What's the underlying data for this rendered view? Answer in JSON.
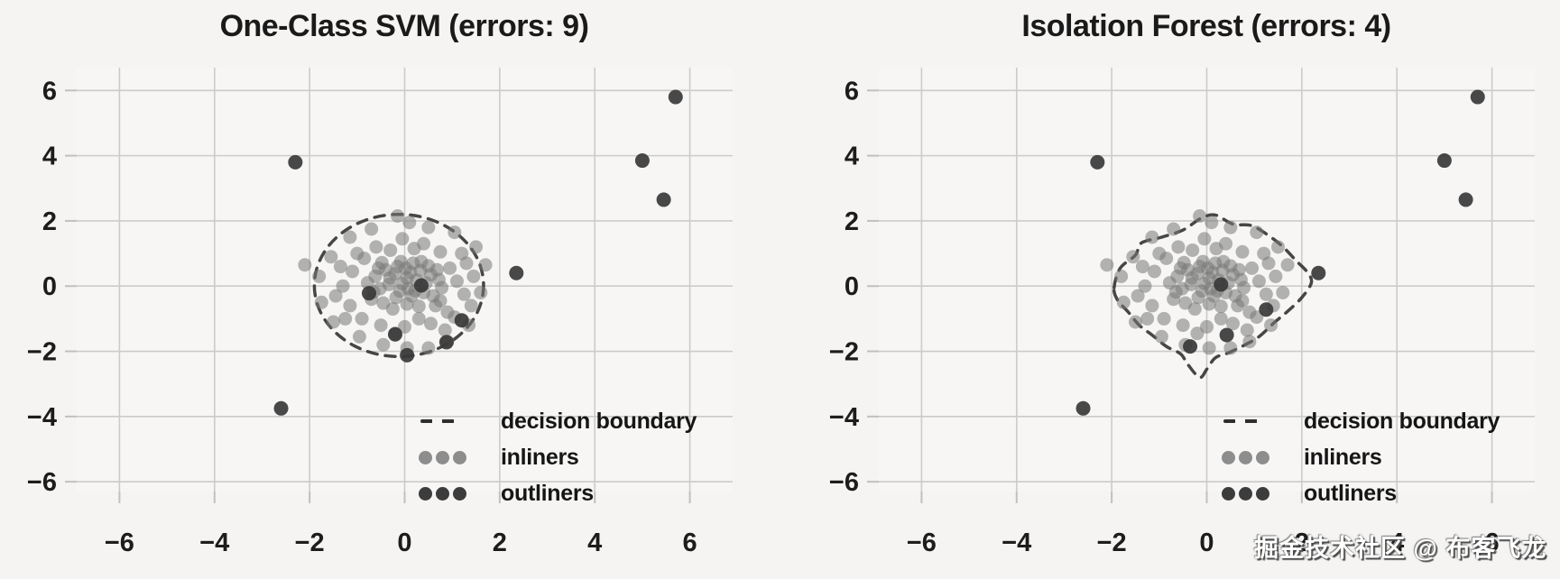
{
  "watermark_text": "掘金技术社区 @ 布客飞龙",
  "colors": {
    "background": "#f5f4f2",
    "plot_background": "#f7f6f4",
    "grid": "#cbcbc9",
    "tick_mark": "#c0c0be",
    "tick_text": "#1c1c1c",
    "title_text": "#1a1a1a",
    "inlier": "#787878",
    "outlier": "#383838",
    "boundary": "#2e2e2e",
    "watermark": "#ffffff"
  },
  "shared_inliers": [
    [
      -0.05,
      0.08
    ],
    [
      0.22,
      -0.14
    ],
    [
      -0.31,
      0.25
    ],
    [
      0.12,
      0.42
    ],
    [
      -0.18,
      -0.35
    ],
    [
      0.45,
      0.1
    ],
    [
      -0.52,
      -0.08
    ],
    [
      0.05,
      -0.55
    ],
    [
      0.33,
      0.48
    ],
    [
      -0.4,
      0.5
    ],
    [
      0.6,
      -0.3
    ],
    [
      -0.62,
      0.3
    ],
    [
      0.18,
      0.7
    ],
    [
      -0.15,
      0.6
    ],
    [
      0.5,
      0.62
    ],
    [
      0.72,
      0.2
    ],
    [
      -0.7,
      -0.4
    ],
    [
      -0.25,
      -0.7
    ],
    [
      0.3,
      -0.62
    ],
    [
      0.05,
      0.25
    ],
    [
      -0.45,
      -0.52
    ],
    [
      0.65,
      -0.6
    ],
    [
      0.78,
      -0.05
    ],
    [
      -0.78,
      0.1
    ],
    [
      0.4,
      -0.2
    ],
    [
      -0.1,
      -0.15
    ],
    [
      0.15,
      -0.3
    ],
    [
      -0.33,
      0.05
    ],
    [
      0.55,
      0.35
    ],
    [
      -0.55,
      0.55
    ],
    [
      0.02,
      0.55
    ],
    [
      0.68,
      0.5
    ],
    [
      -0.2,
      0.38
    ],
    [
      0.25,
      0.18
    ],
    [
      -0.65,
      -0.18
    ],
    [
      0.08,
      -0.08
    ],
    [
      -0.08,
      0.75
    ],
    [
      0.35,
      0.75
    ],
    [
      0.75,
      -0.45
    ],
    [
      -0.48,
      0.72
    ],
    [
      0.95,
      0.55
    ],
    [
      1.1,
      0.15
    ],
    [
      1.25,
      -0.25
    ],
    [
      0.9,
      -0.8
    ],
    [
      1.3,
      0.7
    ],
    [
      0.2,
      1.15
    ],
    [
      -0.3,
      1.1
    ],
    [
      -0.85,
      0.85
    ],
    [
      -1.1,
      0.45
    ],
    [
      -1.3,
      0.0
    ],
    [
      -1.15,
      -0.6
    ],
    [
      -0.9,
      -1.0
    ],
    [
      -0.5,
      -1.2
    ],
    [
      0.0,
      -1.25
    ],
    [
      0.55,
      -1.15
    ],
    [
      1.05,
      -0.95
    ],
    [
      0.75,
      1.05
    ],
    [
      -0.6,
      1.2
    ],
    [
      1.45,
      0.3
    ],
    [
      -1.45,
      -0.3
    ],
    [
      0.4,
      1.3
    ],
    [
      -0.05,
      1.45
    ],
    [
      -1.0,
      1.0
    ],
    [
      1.2,
      1.0
    ],
    [
      -1.35,
      0.6
    ],
    [
      0.85,
      -1.35
    ],
    [
      -0.2,
      -1.45
    ],
    [
      -1.25,
      -1.0
    ],
    [
      1.4,
      -0.6
    ],
    [
      0.3,
      -1.0
    ],
    [
      0.1,
      1.95
    ],
    [
      -0.15,
      2.15
    ],
    [
      0.5,
      1.8
    ],
    [
      1.05,
      1.65
    ],
    [
      1.5,
      1.2
    ],
    [
      1.6,
      -0.2
    ],
    [
      1.35,
      -1.2
    ],
    [
      0.9,
      -1.7
    ],
    [
      0.5,
      -1.9
    ],
    [
      0.05,
      -1.9
    ],
    [
      -0.45,
      -1.8
    ],
    [
      -0.95,
      -1.55
    ],
    [
      -1.5,
      -1.1
    ],
    [
      -1.75,
      -0.5
    ],
    [
      -1.8,
      0.3
    ],
    [
      -1.55,
      0.9
    ],
    [
      -1.15,
      1.5
    ],
    [
      -0.7,
      1.75
    ],
    [
      1.7,
      0.65
    ],
    [
      -2.1,
      0.65
    ]
  ],
  "chart_data": [
    {
      "type": "scatter",
      "title": "One-Class SVM (errors: 9)",
      "errors": 9,
      "xlabel": "",
      "ylabel": "",
      "xlim": [
        -6.9,
        6.9
      ],
      "ylim": [
        -6.3,
        6.7
      ],
      "xticks": [
        -6,
        -4,
        -2,
        0,
        2,
        4,
        6
      ],
      "yticks": [
        6,
        4,
        2,
        0,
        -2,
        -4,
        -6
      ],
      "grid": true,
      "legend": {
        "position": "lower right",
        "items": [
          {
            "label": "decision boundary",
            "marker": "dashed-line"
          },
          {
            "label": "inliners",
            "marker": "gray-dots"
          },
          {
            "label": "outliners",
            "marker": "dark-dots"
          }
        ]
      },
      "inliers_ref": "shared_inliers",
      "outliers": [
        [
          -2.3,
          3.8
        ],
        [
          5.0,
          3.85
        ],
        [
          5.45,
          2.65
        ],
        [
          5.7,
          5.8
        ],
        [
          2.35,
          0.4
        ],
        [
          -2.6,
          -3.75
        ],
        [
          0.05,
          -2.12
        ],
        [
          0.88,
          -1.72
        ],
        [
          0.35,
          0.02
        ],
        [
          -0.75,
          -0.22
        ],
        [
          1.2,
          -1.05
        ],
        [
          -0.2,
          -1.48
        ]
      ],
      "boundary": {
        "shape": "ellipse",
        "cx": -0.12,
        "cy": 0.02,
        "rx": 1.78,
        "ry": 2.18
      }
    },
    {
      "type": "scatter",
      "title": "Isolation Forest (errors: 4)",
      "errors": 4,
      "xlabel": "",
      "ylabel": "",
      "xlim": [
        -6.9,
        6.9
      ],
      "ylim": [
        -6.3,
        6.7
      ],
      "xticks": [
        -6,
        -4,
        -2,
        0,
        2,
        4,
        6
      ],
      "yticks": [
        6,
        4,
        2,
        0,
        -2,
        -4,
        -6
      ],
      "grid": true,
      "legend": {
        "position": "lower right",
        "items": [
          {
            "label": "decision boundary",
            "marker": "dashed-line"
          },
          {
            "label": "inliners",
            "marker": "gray-dots"
          },
          {
            "label": "outliners",
            "marker": "dark-dots"
          }
        ]
      },
      "inliers_ref": "shared_inliers",
      "outliers": [
        [
          -2.3,
          3.8
        ],
        [
          5.0,
          3.85
        ],
        [
          5.45,
          2.65
        ],
        [
          5.7,
          5.8
        ],
        [
          2.35,
          0.4
        ],
        [
          -2.6,
          -3.75
        ],
        [
          -0.35,
          -1.85
        ],
        [
          0.42,
          -1.5
        ],
        [
          0.3,
          0.05
        ],
        [
          1.25,
          -0.72
        ]
      ],
      "boundary": {
        "shape": "path",
        "points": [
          [
            -1.95,
            -0.05
          ],
          [
            -1.82,
            0.55
          ],
          [
            -1.5,
            0.95
          ],
          [
            -1.38,
            1.32
          ],
          [
            -0.95,
            1.5
          ],
          [
            -0.5,
            1.72
          ],
          [
            -0.12,
            2.08
          ],
          [
            0.18,
            2.18
          ],
          [
            0.55,
            1.9
          ],
          [
            0.95,
            1.85
          ],
          [
            1.35,
            1.5
          ],
          [
            1.62,
            1.18
          ],
          [
            1.88,
            0.78
          ],
          [
            2.12,
            0.42
          ],
          [
            2.2,
            0.1
          ],
          [
            2.0,
            -0.35
          ],
          [
            1.72,
            -0.75
          ],
          [
            1.42,
            -1.12
          ],
          [
            1.1,
            -1.55
          ],
          [
            0.78,
            -1.82
          ],
          [
            0.45,
            -2.05
          ],
          [
            0.18,
            -2.2
          ],
          [
            0.0,
            -2.55
          ],
          [
            -0.15,
            -2.8
          ],
          [
            -0.4,
            -2.4
          ],
          [
            -0.55,
            -2.08
          ],
          [
            -0.85,
            -1.85
          ],
          [
            -1.15,
            -1.5
          ],
          [
            -1.42,
            -1.2
          ],
          [
            -1.65,
            -0.8
          ],
          [
            -1.88,
            -0.42
          ]
        ]
      }
    }
  ]
}
